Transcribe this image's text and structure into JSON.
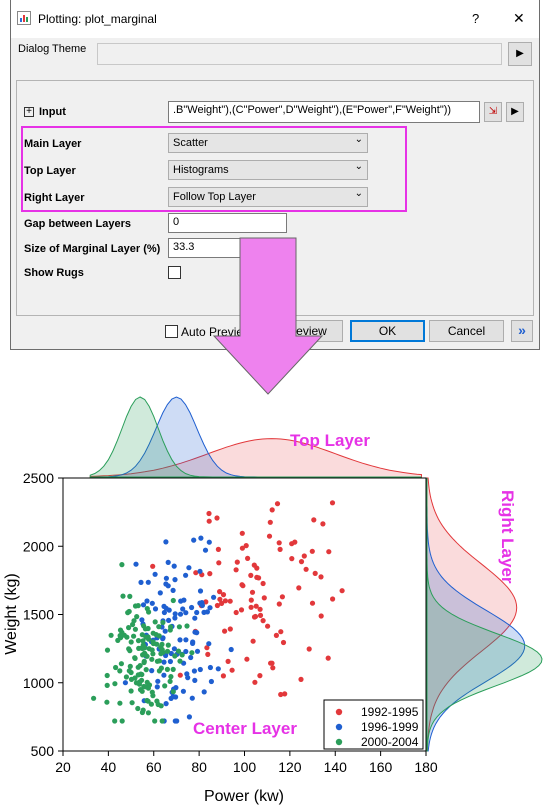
{
  "dialog": {
    "title": "Plotting: plot_marginal",
    "help_label": "?",
    "close_label": "✕",
    "theme_label": "Dialog Theme",
    "theme_value": "",
    "input_label": "Input",
    "input_value": ".B\"Weight\"),(C\"Power\",D\"Weight\"),(E\"Power\",F\"Weight\"))",
    "main_layer_label": "Main Layer",
    "main_layer_value": "Scatter",
    "top_layer_label": "Top Layer",
    "top_layer_value": "Histograms",
    "right_layer_label": "Right Layer",
    "right_layer_value": "Follow Top Layer",
    "gap_label": "Gap between Layers",
    "gap_value": "0",
    "size_label": "Size of Marginal Layer (%)",
    "size_value": "33.3",
    "rugs_label": "Show Rugs",
    "auto_preview_label": "Auto Preview",
    "preview_label": "Preview",
    "ok_label": "OK",
    "cancel_label": "Cancel",
    "more_label": "»"
  },
  "annotations": {
    "top_layer": "Top Layer",
    "right_layer": "Right Layer",
    "center_layer": "Center Layer"
  },
  "colors": {
    "s1": "#e2383b",
    "s2": "#1f5fd0",
    "s3": "#2b9e5a",
    "magenta": "#e632e6",
    "arrow_fill": "#ee82ee"
  },
  "chart_data": {
    "type": "scatter",
    "xlabel": "Power (kw)",
    "ylabel": "Weight (kg)",
    "xlim": [
      20,
      180
    ],
    "ylim": [
      500,
      2500
    ],
    "xticks": [
      20,
      40,
      60,
      80,
      100,
      120,
      140,
      160,
      180
    ],
    "yticks": [
      500,
      1000,
      1500,
      2000,
      2500
    ],
    "legend_position": "bottom-right",
    "series": [
      {
        "name": "1992-1995",
        "color": "#e2383b"
      },
      {
        "name": "1996-1999",
        "color": "#1f5fd0"
      },
      {
        "name": "2000-2004",
        "color": "#2b9e5a"
      }
    ]
  }
}
